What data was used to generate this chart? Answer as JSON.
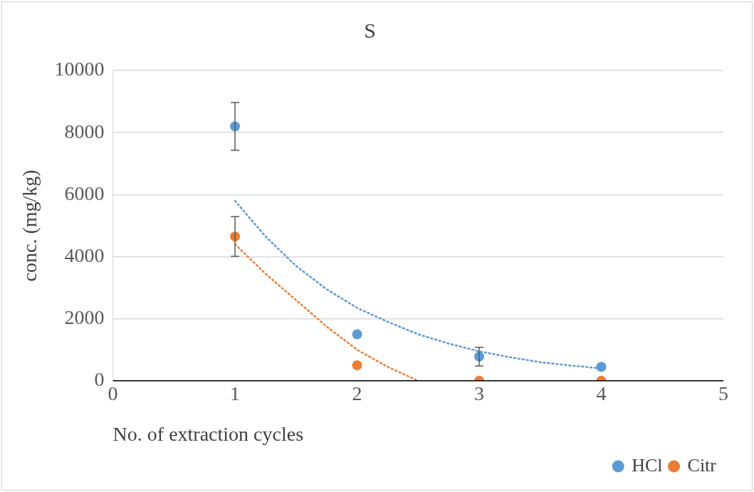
{
  "chart_data": {
    "type": "scatter",
    "title": "S",
    "xlabel": "No. of extraction cycles",
    "ylabel": "conc. (mg/kg)",
    "xlim": [
      0,
      5
    ],
    "xticks": [
      0,
      1,
      2,
      3,
      4,
      5
    ],
    "ylim": [
      0,
      10000
    ],
    "yticks": [
      0,
      2000,
      4000,
      6000,
      8000,
      10000
    ],
    "grid": "y",
    "legend": "bottom right",
    "marker": "circle",
    "series": [
      {
        "name": "HCl",
        "color": "#5b9bd5",
        "x": [
          1,
          2,
          3,
          4
        ],
        "values": [
          8200,
          1500,
          780,
          450
        ],
        "errors": [
          770,
          null,
          300,
          null
        ]
      },
      {
        "name": "Citr",
        "color": "#ed7d31",
        "x": [
          1,
          2,
          3,
          4
        ],
        "values": [
          4650,
          500,
          0,
          0
        ],
        "errors": [
          640,
          null,
          null,
          null
        ]
      },
      {
        "type": "line",
        "line_style": "dotted",
        "marker": "none",
        "color": "#5b9bd5",
        "x": [
          1,
          1.25,
          1.5,
          1.75,
          2,
          2.25,
          2.5,
          2.75,
          3,
          3.25,
          3.5,
          3.75,
          4
        ],
        "values": [
          5800,
          4650,
          3700,
          2950,
          2350,
          1900,
          1500,
          1200,
          950,
          760,
          600,
          490,
          400
        ]
      },
      {
        "type": "line",
        "line_style": "dotted",
        "marker": "none",
        "color": "#ed7d31",
        "x": [
          1,
          1.25,
          1.5,
          1.75,
          2,
          2.25,
          2.5
        ],
        "values": [
          4400,
          3450,
          2600,
          1750,
          1000,
          450,
          0
        ]
      }
    ]
  }
}
